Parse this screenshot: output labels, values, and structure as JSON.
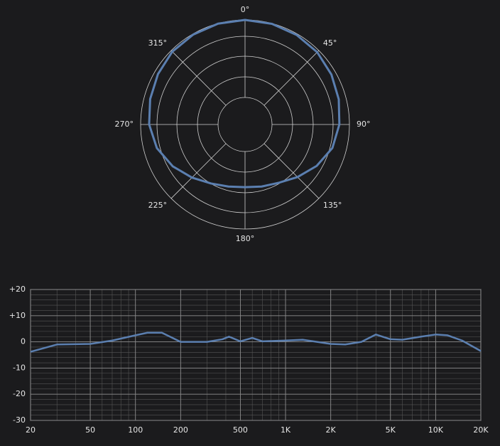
{
  "chart_data": [
    {
      "type": "polar",
      "theta": [
        0,
        15,
        30,
        45,
        60,
        75,
        90,
        105,
        120,
        135,
        150,
        165,
        180,
        195,
        210,
        225,
        240,
        255,
        270,
        285,
        300,
        315,
        330,
        345
      ],
      "series": [
        {
          "color": "#5b7fb0",
          "values": [
            1.0,
            0.995,
            0.985,
            0.97,
            0.94,
            0.905,
            0.87,
            0.82,
            0.72,
            0.61,
            0.52,
            0.48,
            0.46,
            0.48,
            0.53,
            0.62,
            0.73,
            0.83,
            0.89,
            0.92,
            0.95,
            0.98,
            0.99,
            0.998
          ]
        }
      ],
      "rlim": [
        0,
        1
      ],
      "thetaticks": [
        {
          "value": 0,
          "label": "0°"
        },
        {
          "value": 45,
          "label": "45°"
        },
        {
          "value": 90,
          "label": "90°"
        },
        {
          "value": 135,
          "label": "135°"
        },
        {
          "value": 180,
          "label": "180°"
        },
        {
          "value": 225,
          "label": "225°"
        },
        {
          "value": 270,
          "label": "270°"
        },
        {
          "value": 315,
          "label": "315°"
        }
      ]
    },
    {
      "type": "line",
      "x": [
        20,
        30,
        50,
        70,
        100,
        120,
        150,
        200,
        300,
        380,
        420,
        500,
        600,
        700,
        1000,
        1300,
        2000,
        2500,
        3200,
        4000,
        5000,
        6000,
        8000,
        10000,
        12000,
        15000,
        20000
      ],
      "series": [
        {
          "color": "#5b7fb0",
          "values": [
            -3.8,
            -1,
            -0.8,
            0.5,
            2.5,
            3.5,
            3.5,
            0,
            0,
            1,
            2,
            0.2,
            1.5,
            0.2,
            0.5,
            0.8,
            -0.8,
            -1,
            0,
            2.8,
            1,
            0.8,
            2,
            2.8,
            2.5,
            0.5,
            -3.5
          ]
        }
      ],
      "xscale": "log",
      "xlim": [
        20,
        20000
      ],
      "xticks": [
        20,
        50,
        100,
        200,
        500,
        {
          "value": 1000,
          "label": "1K"
        },
        {
          "value": 2000,
          "label": "2K"
        },
        {
          "value": 5000,
          "label": "5K"
        },
        {
          "value": 10000,
          "label": "10K"
        },
        {
          "value": 20000,
          "label": "20K"
        }
      ],
      "ylim": [
        -30,
        20
      ],
      "yticks": [
        {
          "value": 20,
          "label": "+20"
        },
        {
          "value": 10,
          "label": "+10"
        },
        0,
        -10,
        -20,
        -30
      ],
      "grid": true
    }
  ]
}
